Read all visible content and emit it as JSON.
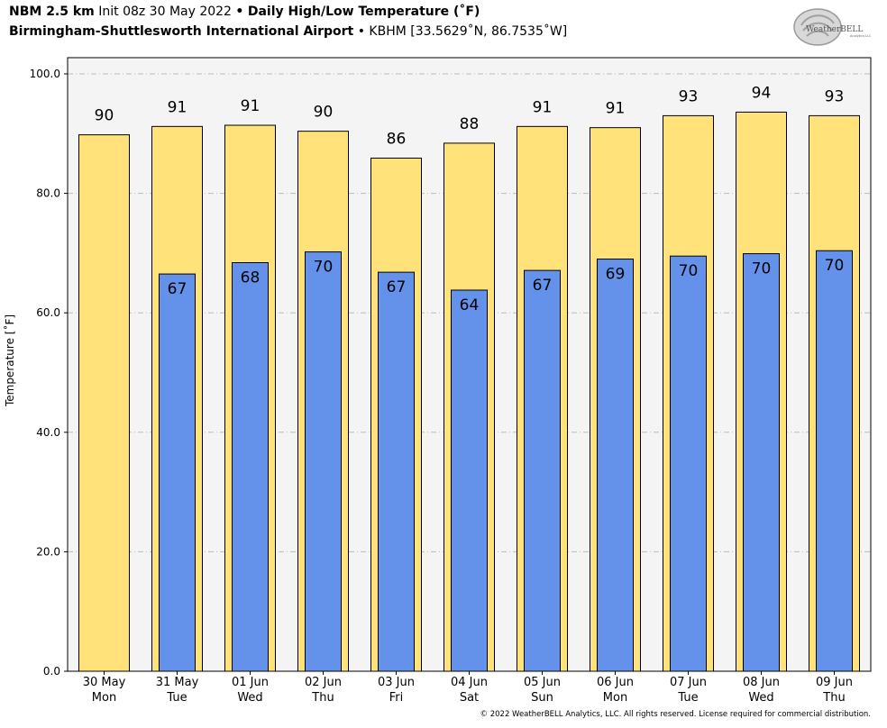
{
  "header": {
    "model": "NBM 2.5 km",
    "init": "Init 08z 30 May 2022",
    "bullet": "•",
    "product": "Daily High/Low Temperature (˚F)",
    "station_name": "Birmingham-Shuttlesworth International Airport",
    "station_info": "KBHM [33.5629˚N, 86.7535˚W]"
  },
  "logo": {
    "text": "WeatherBELL",
    "subtext": "Analytics LLC"
  },
  "footer": {
    "copyright": "© 2022 WeatherBELL Analytics, LLC. All rights reserved. License required for commercial distribution."
  },
  "colors": {
    "high": "#ffe27a",
    "low": "#6492ea",
    "plot_bg": "#f4f4f4",
    "grid": "#bbbbbb"
  },
  "chart_data": {
    "type": "bar",
    "ylabel": "Temperature [˚F]",
    "ylim": [
      0,
      100
    ],
    "yticks": [
      "0.0",
      "20.0",
      "40.0",
      "60.0",
      "80.0",
      "100.0"
    ],
    "grid": true,
    "categories": [
      "30 May",
      "31 May",
      "01 Jun",
      "02 Jun",
      "03 Jun",
      "04 Jun",
      "05 Jun",
      "06 Jun",
      "07 Jun",
      "08 Jun",
      "09 Jun"
    ],
    "weekdays": [
      "Mon",
      "Tue",
      "Wed",
      "Thu",
      "Fri",
      "Sat",
      "Sun",
      "Mon",
      "Tue",
      "Wed",
      "Thu"
    ],
    "series": [
      {
        "values": [
          89.8,
          91.2,
          91.4,
          90.4,
          85.9,
          88.4,
          91.2,
          91.0,
          93.0,
          93.6,
          93.0
        ],
        "labels": [
          "90",
          "91",
          "91",
          "90",
          "86",
          "88",
          "91",
          "91",
          "93",
          "94",
          "93"
        ]
      },
      {
        "values": [
          null,
          66.5,
          68.4,
          70.2,
          66.8,
          63.8,
          67.1,
          69.0,
          69.5,
          69.9,
          70.4
        ],
        "labels": [
          "",
          "67",
          "68",
          "70",
          "67",
          "64",
          "67",
          "69",
          "70",
          "70",
          "70"
        ]
      }
    ]
  }
}
